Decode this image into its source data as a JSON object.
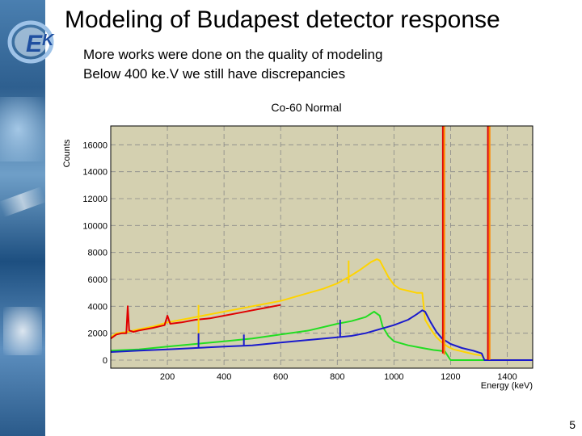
{
  "slide": {
    "title": "Modeling of Budapest detector response",
    "bullets": [
      "More works were done on the quality of modeling",
      "Below 400 ke.V we still have discrepancies"
    ],
    "page_number": "5",
    "logo_icon": "ekf-logo-icon"
  },
  "chart_data": {
    "type": "line",
    "title": "Co-60 Normal",
    "xlabel": "Energy (keV)",
    "ylabel": "Counts",
    "xlim": [
      0,
      1490
    ],
    "ylim": [
      -600,
      17400
    ],
    "xticks": [
      200,
      400,
      600,
      800,
      1000,
      1200,
      1400
    ],
    "yticks": [
      0,
      2000,
      4000,
      6000,
      8000,
      10000,
      12000,
      14000,
      16000
    ],
    "grid": true,
    "background": "#d4d0b0",
    "series": [
      {
        "color": "#ffd400",
        "x": [
          0,
          20,
          60,
          100,
          150,
          200,
          250,
          300,
          350,
          400,
          450,
          500,
          550,
          600,
          650,
          700,
          750,
          800,
          850,
          880,
          900,
          920,
          940,
          950,
          960,
          980,
          1000,
          1020,
          1040,
          1060,
          1080,
          1100,
          1110,
          1130,
          1150,
          1170,
          1190,
          1210,
          1230,
          1250,
          1270,
          1290,
          1310,
          1320,
          1340,
          1380,
          1420,
          1490
        ],
        "y": [
          1700,
          2000,
          2100,
          2300,
          2500,
          2800,
          3000,
          3200,
          3400,
          3600,
          3800,
          4000,
          4200,
          4400,
          4700,
          5000,
          5300,
          5700,
          6300,
          6700,
          7000,
          7300,
          7500,
          7400,
          7000,
          6200,
          5600,
          5300,
          5200,
          5100,
          5000,
          5000,
          3000,
          2300,
          1700,
          1300,
          1000,
          800,
          700,
          600,
          500,
          400,
          350,
          30,
          20,
          10,
          5,
          0
        ]
      },
      {
        "color": "#e00000",
        "x": [
          0,
          20,
          40,
          55,
          60,
          65,
          80,
          100,
          150,
          190,
          200,
          210,
          250,
          300,
          350,
          400,
          450,
          500,
          550,
          600
        ],
        "y": [
          1600,
          1900,
          2000,
          2000,
          4000,
          2200,
          2100,
          2200,
          2400,
          2600,
          3300,
          2700,
          2800,
          3000,
          3100,
          3300,
          3500,
          3700,
          3900,
          4100
        ]
      },
      {
        "color": "#22dd22",
        "x": [
          0,
          100,
          200,
          300,
          400,
          500,
          600,
          700,
          800,
          850,
          900,
          930,
          950,
          960,
          980,
          1000,
          1050,
          1100,
          1140,
          1160,
          1180,
          1200,
          1300,
          1490
        ],
        "y": [
          700,
          800,
          1000,
          1200,
          1400,
          1600,
          1900,
          2200,
          2700,
          2900,
          3200,
          3600,
          3300,
          2500,
          1800,
          1400,
          1100,
          900,
          750,
          700,
          650,
          0,
          0,
          0
        ]
      },
      {
        "color": "#1a1acc",
        "x": [
          0,
          100,
          200,
          300,
          400,
          500,
          600,
          700,
          800,
          850,
          900,
          950,
          1000,
          1050,
          1080,
          1100,
          1110,
          1130,
          1150,
          1170,
          1200,
          1240,
          1280,
          1310,
          1320,
          1400,
          1490
        ],
        "y": [
          600,
          700,
          800,
          900,
          1000,
          1100,
          1300,
          1500,
          1700,
          1800,
          2000,
          2300,
          2600,
          3000,
          3400,
          3700,
          3600,
          2800,
          2100,
          1600,
          1200,
          900,
          700,
          500,
          0,
          0,
          0
        ]
      },
      {
        "color": "#ffd400",
        "x": [
          310,
          310
        ],
        "y": [
          1600,
          4100
        ]
      },
      {
        "color": "#1a1acc",
        "x": [
          310,
          310
        ],
        "y": [
          900,
          2000
        ]
      },
      {
        "color": "#1a1acc",
        "x": [
          810,
          810
        ],
        "y": [
          1700,
          3000
        ]
      },
      {
        "color": "#ffd400",
        "x": [
          840,
          840
        ],
        "y": [
          5700,
          7400
        ]
      },
      {
        "color": "#1a1acc",
        "x": [
          470,
          470
        ],
        "y": [
          1100,
          1900
        ]
      },
      {
        "color": "#e00000",
        "x": [
          1173,
          1173
        ],
        "y": [
          500,
          17400
        ]
      },
      {
        "color": "#ff8800",
        "x": [
          1178,
          1178
        ],
        "y": [
          400,
          17400
        ]
      },
      {
        "color": "#e00000",
        "x": [
          1332,
          1332
        ],
        "y": [
          20,
          17400
        ]
      },
      {
        "color": "#ff8800",
        "x": [
          1338,
          1338
        ],
        "y": [
          10,
          17400
        ]
      }
    ]
  }
}
